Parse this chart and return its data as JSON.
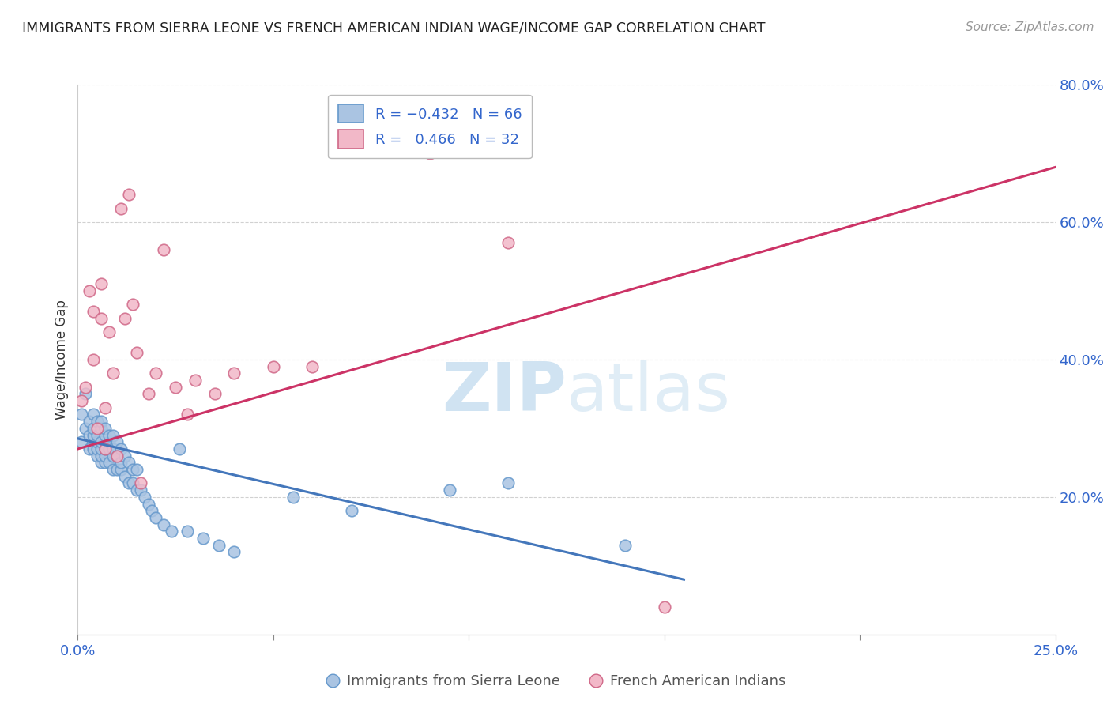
{
  "title": "IMMIGRANTS FROM SIERRA LEONE VS FRENCH AMERICAN INDIAN WAGE/INCOME GAP CORRELATION CHART",
  "source_text": "Source: ZipAtlas.com",
  "ylabel": "Wage/Income Gap",
  "xlim": [
    0.0,
    0.25
  ],
  "ylim": [
    0.0,
    0.8
  ],
  "xtick_labels": [
    "0.0%",
    "",
    "",
    "",
    "",
    "25.0%"
  ],
  "ytick_labels": [
    "20.0%",
    "40.0%",
    "60.0%",
    "80.0%"
  ],
  "blue_color": "#aac4e2",
  "blue_edge_color": "#6699cc",
  "pink_color": "#f2b8c8",
  "pink_edge_color": "#d06888",
  "blue_line_color": "#4477bb",
  "pink_line_color": "#cc3366",
  "watermark_zip": "ZIP",
  "watermark_atlas": "atlas",
  "legend_label_blue": "Immigrants from Sierra Leone",
  "legend_label_pink": "French American Indians",
  "blue_scatter_x": [
    0.001,
    0.001,
    0.002,
    0.002,
    0.003,
    0.003,
    0.003,
    0.004,
    0.004,
    0.004,
    0.004,
    0.005,
    0.005,
    0.005,
    0.005,
    0.005,
    0.006,
    0.006,
    0.006,
    0.006,
    0.006,
    0.006,
    0.007,
    0.007,
    0.007,
    0.007,
    0.007,
    0.008,
    0.008,
    0.008,
    0.008,
    0.009,
    0.009,
    0.009,
    0.009,
    0.01,
    0.01,
    0.01,
    0.011,
    0.011,
    0.011,
    0.012,
    0.012,
    0.013,
    0.013,
    0.014,
    0.014,
    0.015,
    0.015,
    0.016,
    0.017,
    0.018,
    0.019,
    0.02,
    0.022,
    0.024,
    0.026,
    0.028,
    0.032,
    0.036,
    0.04,
    0.055,
    0.07,
    0.095,
    0.11,
    0.14
  ],
  "blue_scatter_y": [
    0.28,
    0.32,
    0.3,
    0.35,
    0.27,
    0.29,
    0.31,
    0.27,
    0.29,
    0.3,
    0.32,
    0.26,
    0.27,
    0.28,
    0.29,
    0.31,
    0.25,
    0.26,
    0.27,
    0.28,
    0.3,
    0.31,
    0.25,
    0.26,
    0.27,
    0.29,
    0.3,
    0.25,
    0.27,
    0.28,
    0.29,
    0.24,
    0.26,
    0.27,
    0.29,
    0.24,
    0.26,
    0.28,
    0.24,
    0.25,
    0.27,
    0.23,
    0.26,
    0.22,
    0.25,
    0.22,
    0.24,
    0.21,
    0.24,
    0.21,
    0.2,
    0.19,
    0.18,
    0.17,
    0.16,
    0.15,
    0.27,
    0.15,
    0.14,
    0.13,
    0.12,
    0.2,
    0.18,
    0.21,
    0.22,
    0.13
  ],
  "pink_scatter_x": [
    0.001,
    0.002,
    0.003,
    0.004,
    0.004,
    0.005,
    0.006,
    0.006,
    0.007,
    0.007,
    0.008,
    0.009,
    0.01,
    0.011,
    0.012,
    0.013,
    0.014,
    0.015,
    0.016,
    0.018,
    0.02,
    0.022,
    0.025,
    0.028,
    0.03,
    0.035,
    0.04,
    0.05,
    0.06,
    0.09,
    0.11,
    0.15
  ],
  "pink_scatter_y": [
    0.34,
    0.36,
    0.5,
    0.4,
    0.47,
    0.3,
    0.46,
    0.51,
    0.27,
    0.33,
    0.44,
    0.38,
    0.26,
    0.62,
    0.46,
    0.64,
    0.48,
    0.41,
    0.22,
    0.35,
    0.38,
    0.56,
    0.36,
    0.32,
    0.37,
    0.35,
    0.38,
    0.39,
    0.39,
    0.7,
    0.57,
    0.04
  ],
  "blue_line_x0": 0.0,
  "blue_line_y0": 0.285,
  "blue_line_x1": 0.155,
  "blue_line_y1": 0.08,
  "pink_line_x0": 0.0,
  "pink_line_y0": 0.27,
  "pink_line_x1": 0.25,
  "pink_line_y1": 0.68
}
